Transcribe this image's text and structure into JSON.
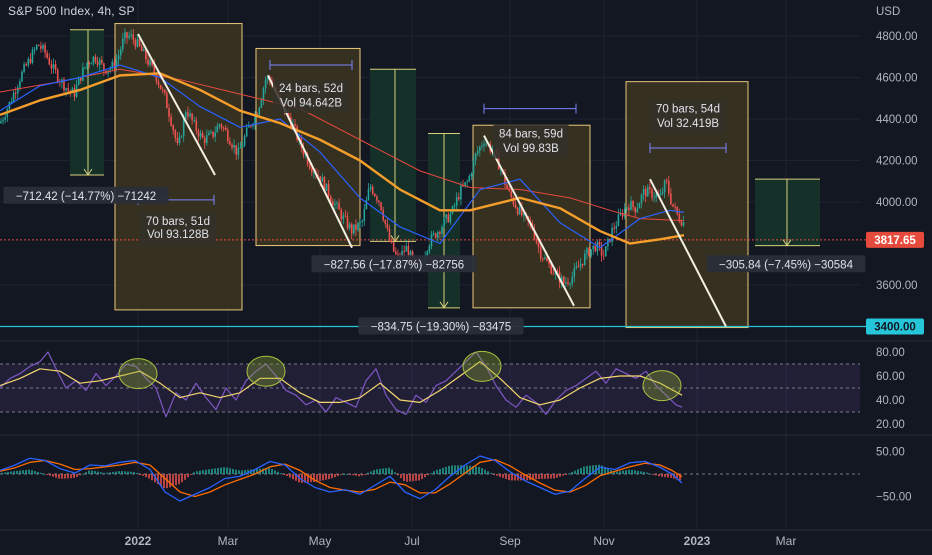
{
  "symbol": "S&P 500 Index, 4h, SP",
  "currency": "USD",
  "colors": {
    "bg": "#131722",
    "grid": "#1f2330",
    "up": "#26a69a",
    "down": "#ef5350",
    "ma_fast": "#2962ff",
    "ma_slow": "#f59e2b",
    "ma_mid": "#e64a3c",
    "drop_box": "#3d3520",
    "drop_border": "#e9c77a",
    "target_box": "#15302a",
    "target_line": "#d8d07a",
    "rsi": "#7e57c2",
    "rsi_signal": "#f5d76e",
    "macd": "#2962ff",
    "macd_signal": "#ff6d00",
    "price_line": "#e64a3c",
    "support_line": "#26c6da"
  },
  "chart_data": {
    "type": "line",
    "title": "S&P 500 Index, 4h, SP",
    "x_ticks": [
      "2022",
      "Mar",
      "May",
      "Jul",
      "Sep",
      "Nov",
      "2023",
      "Mar"
    ],
    "y_ticks": [
      "4800.00",
      "4600.00",
      "4400.00",
      "4200.00",
      "4000.00",
      "3600.00"
    ],
    "ylim": [
      3400,
      4850
    ],
    "price_path": [
      [
        0,
        4380
      ],
      [
        10,
        4480
      ],
      [
        20,
        4600
      ],
      [
        30,
        4690
      ],
      [
        38,
        4760
      ],
      [
        45,
        4720
      ],
      [
        52,
        4650
      ],
      [
        60,
        4590
      ],
      [
        68,
        4540
      ],
      [
        74,
        4520
      ],
      [
        80,
        4600
      ],
      [
        88,
        4680
      ],
      [
        96,
        4700
      ],
      [
        104,
        4640
      ],
      [
        112,
        4650
      ],
      [
        118,
        4700
      ],
      [
        124,
        4790
      ],
      [
        130,
        4800
      ],
      [
        136,
        4770
      ],
      [
        145,
        4700
      ],
      [
        155,
        4620
      ],
      [
        165,
        4500
      ],
      [
        172,
        4380
      ],
      [
        178,
        4250
      ],
      [
        186,
        4450
      ],
      [
        194,
        4370
      ],
      [
        203,
        4300
      ],
      [
        212,
        4320
      ],
      [
        220,
        4380
      ],
      [
        228,
        4320
      ],
      [
        238,
        4230
      ],
      [
        248,
        4350
      ],
      [
        258,
        4450
      ],
      [
        266,
        4600
      ],
      [
        272,
        4580
      ],
      [
        280,
        4480
      ],
      [
        290,
        4400
      ],
      [
        300,
        4280
      ],
      [
        310,
        4180
      ],
      [
        320,
        4120
      ],
      [
        330,
        4030
      ],
      [
        342,
        3930
      ],
      [
        352,
        3860
      ],
      [
        362,
        3900
      ],
      [
        370,
        4080
      ],
      [
        380,
        4000
      ],
      [
        390,
        3800
      ],
      [
        398,
        3720
      ],
      [
        406,
        3780
      ],
      [
        414,
        3700
      ],
      [
        420,
        3680
      ],
      [
        428,
        3800
      ],
      [
        436,
        3850
      ],
      [
        444,
        3900
      ],
      [
        452,
        3950
      ],
      [
        460,
        4050
      ],
      [
        468,
        4100
      ],
      [
        476,
        4230
      ],
      [
        484,
        4300
      ],
      [
        492,
        4250
      ],
      [
        500,
        4170
      ],
      [
        508,
        4050
      ],
      [
        516,
        3980
      ],
      [
        524,
        3920
      ],
      [
        532,
        3880
      ],
      [
        540,
        3760
      ],
      [
        548,
        3700
      ],
      [
        556,
        3650
      ],
      [
        564,
        3610
      ],
      [
        572,
        3640
      ],
      [
        580,
        3700
      ],
      [
        588,
        3760
      ],
      [
        596,
        3790
      ],
      [
        604,
        3740
      ],
      [
        612,
        3860
      ],
      [
        620,
        3930
      ],
      [
        628,
        3990
      ],
      [
        636,
        3970
      ],
      [
        644,
        4050
      ],
      [
        652,
        4040
      ],
      [
        660,
        4020
      ],
      [
        666,
        4100
      ],
      [
        672,
        3990
      ],
      [
        678,
        3930
      ],
      [
        684,
        3900
      ]
    ],
    "ma_fast_path": [
      [
        0,
        4440
      ],
      [
        40,
        4560
      ],
      [
        80,
        4600
      ],
      [
        120,
        4660
      ],
      [
        160,
        4600
      ],
      [
        200,
        4460
      ],
      [
        240,
        4360
      ],
      [
        280,
        4400
      ],
      [
        320,
        4240
      ],
      [
        360,
        4020
      ],
      [
        400,
        3880
      ],
      [
        440,
        3800
      ],
      [
        480,
        4060
      ],
      [
        520,
        4110
      ],
      [
        560,
        3900
      ],
      [
        600,
        3780
      ],
      [
        640,
        3920
      ],
      [
        670,
        3960
      ],
      [
        684,
        3950
      ]
    ],
    "ma_slow_path": [
      [
        0,
        4420
      ],
      [
        40,
        4490
      ],
      [
        80,
        4540
      ],
      [
        120,
        4610
      ],
      [
        160,
        4620
      ],
      [
        200,
        4540
      ],
      [
        240,
        4440
      ],
      [
        280,
        4380
      ],
      [
        320,
        4300
      ],
      [
        360,
        4200
      ],
      [
        400,
        4060
      ],
      [
        440,
        3960
      ],
      [
        470,
        3960
      ],
      [
        520,
        4020
      ],
      [
        560,
        3970
      ],
      [
        600,
        3860
      ],
      [
        630,
        3800
      ],
      [
        660,
        3820
      ],
      [
        684,
        3840
      ]
    ],
    "ma_mid_path": [
      [
        0,
        4530
      ],
      [
        60,
        4580
      ],
      [
        120,
        4640
      ],
      [
        180,
        4590
      ],
      [
        240,
        4520
      ],
      [
        300,
        4450
      ],
      [
        360,
        4300
      ],
      [
        420,
        4150
      ],
      [
        470,
        4070
      ],
      [
        520,
        4060
      ],
      [
        570,
        4020
      ],
      [
        610,
        3960
      ],
      [
        640,
        3920
      ],
      [
        684,
        3910
      ]
    ],
    "drops": [
      {
        "x1": 115,
        "x2": 242,
        "top": 4860,
        "bottom": 3480,
        "line": [
          [
            138,
            4810
          ],
          [
            215,
            4130
          ]
        ],
        "bars": "70 bars, 51d",
        "vol": "Vol 93.128B"
      },
      {
        "x1": 256,
        "x2": 360,
        "top": 4740,
        "bottom": 3790,
        "line": [
          [
            268,
            4610
          ],
          [
            352,
            3780
          ]
        ],
        "bars": "24 bars, 52d",
        "vol": "Vol 94.642B"
      },
      {
        "x1": 473,
        "x2": 590,
        "top": 4370,
        "bottom": 3490,
        "line": [
          [
            484,
            4320
          ],
          [
            574,
            3500
          ]
        ],
        "bars": "84 bars, 59d",
        "vol": "Vol 99.83B"
      },
      {
        "x1": 626,
        "x2": 748,
        "top": 4580,
        "bottom": 3395,
        "line": [
          [
            650,
            4110
          ],
          [
            726,
            3400
          ]
        ],
        "bars": "70 bars, 54d",
        "vol": "Vol 32.419B"
      }
    ],
    "targets": [
      {
        "x1": 70,
        "x2": 104,
        "top": 4830,
        "bottom": 4130,
        "arrow_x": 88
      },
      {
        "x1": 370,
        "x2": 416,
        "top": 4640,
        "bottom": 3810,
        "arrow_x": 395
      },
      {
        "x1": 428,
        "x2": 460,
        "top": 4330,
        "bottom": 3490,
        "arrow_x": 444
      },
      {
        "x1": 755,
        "x2": 820,
        "top": 4110,
        "bottom": 3790,
        "arrow_x": 787
      }
    ],
    "measure_labels": [
      {
        "text": "−712.42 (−14.77%) −71242",
        "cx": 86,
        "y": 4030
      },
      {
        "text": "−827.56 (−17.87%) −82756",
        "cx": 394,
        "y": 3700
      },
      {
        "text": "−834.75 (−19.30%) −83475",
        "cx": 441,
        "y": 3400
      },
      {
        "text": "−305.84 (−7.45%) −30584",
        "cx": 786,
        "y": 3700
      }
    ],
    "last_price": "3817.65",
    "support": "3400.00",
    "rsi": {
      "y_ticks": [
        "80.00",
        "60.00",
        "40.00",
        "20.00"
      ],
      "band": [
        30,
        70
      ],
      "series": [
        [
          0,
          50
        ],
        [
          10,
          58
        ],
        [
          20,
          62
        ],
        [
          30,
          68
        ],
        [
          40,
          72
        ],
        [
          48,
          80
        ],
        [
          56,
          66
        ],
        [
          66,
          50
        ],
        [
          76,
          56
        ],
        [
          86,
          48
        ],
        [
          96,
          62
        ],
        [
          106,
          52
        ],
        [
          116,
          60
        ],
        [
          126,
          70
        ],
        [
          136,
          68
        ],
        [
          146,
          58
        ],
        [
          156,
          50
        ],
        [
          166,
          26
        ],
        [
          176,
          46
        ],
        [
          186,
          40
        ],
        [
          196,
          54
        ],
        [
          206,
          42
        ],
        [
          216,
          32
        ],
        [
          226,
          50
        ],
        [
          236,
          40
        ],
        [
          246,
          56
        ],
        [
          256,
          64
        ],
        [
          266,
          70
        ],
        [
          276,
          60
        ],
        [
          286,
          48
        ],
        [
          296,
          44
        ],
        [
          306,
          36
        ],
        [
          316,
          40
        ],
        [
          326,
          30
        ],
        [
          336,
          42
        ],
        [
          346,
          38
        ],
        [
          356,
          34
        ],
        [
          366,
          56
        ],
        [
          376,
          66
        ],
        [
          386,
          44
        ],
        [
          396,
          32
        ],
        [
          406,
          28
        ],
        [
          416,
          44
        ],
        [
          426,
          38
        ],
        [
          436,
          52
        ],
        [
          446,
          56
        ],
        [
          456,
          64
        ],
        [
          466,
          72
        ],
        [
          476,
          80
        ],
        [
          486,
          68
        ],
        [
          496,
          52
        ],
        [
          506,
          40
        ],
        [
          516,
          34
        ],
        [
          526,
          44
        ],
        [
          536,
          38
        ],
        [
          546,
          28
        ],
        [
          556,
          40
        ],
        [
          566,
          48
        ],
        [
          576,
          52
        ],
        [
          586,
          58
        ],
        [
          596,
          64
        ],
        [
          606,
          54
        ],
        [
          616,
          66
        ],
        [
          626,
          62
        ],
        [
          636,
          58
        ],
        [
          646,
          64
        ],
        [
          656,
          52
        ],
        [
          666,
          44
        ],
        [
          676,
          36
        ],
        [
          682,
          34
        ]
      ],
      "signal": [
        [
          0,
          52
        ],
        [
          20,
          58
        ],
        [
          40,
          66
        ],
        [
          60,
          64
        ],
        [
          80,
          54
        ],
        [
          100,
          56
        ],
        [
          120,
          60
        ],
        [
          140,
          64
        ],
        [
          160,
          54
        ],
        [
          180,
          42
        ],
        [
          200,
          46
        ],
        [
          220,
          42
        ],
        [
          240,
          46
        ],
        [
          260,
          58
        ],
        [
          280,
          58
        ],
        [
          300,
          46
        ],
        [
          320,
          38
        ],
        [
          340,
          38
        ],
        [
          360,
          42
        ],
        [
          380,
          54
        ],
        [
          400,
          40
        ],
        [
          420,
          38
        ],
        [
          440,
          48
        ],
        [
          460,
          60
        ],
        [
          480,
          72
        ],
        [
          500,
          58
        ],
        [
          520,
          42
        ],
        [
          540,
          36
        ],
        [
          560,
          40
        ],
        [
          580,
          50
        ],
        [
          600,
          58
        ],
        [
          620,
          60
        ],
        [
          640,
          60
        ],
        [
          660,
          54
        ],
        [
          682,
          44
        ]
      ],
      "circles": [
        [
          138,
          62
        ],
        [
          266,
          64
        ],
        [
          482,
          68
        ],
        [
          662,
          52
        ]
      ]
    },
    "macd": {
      "y_ticks": [
        "50.00",
        "−50.00"
      ],
      "macd_series": [
        [
          0,
          8
        ],
        [
          15,
          20
        ],
        [
          30,
          35
        ],
        [
          45,
          30
        ],
        [
          60,
          12
        ],
        [
          75,
          2
        ],
        [
          90,
          20
        ],
        [
          105,
          18
        ],
        [
          120,
          26
        ],
        [
          135,
          30
        ],
        [
          150,
          10
        ],
        [
          165,
          -40
        ],
        [
          180,
          -60
        ],
        [
          195,
          -45
        ],
        [
          210,
          -30
        ],
        [
          225,
          -10
        ],
        [
          240,
          -5
        ],
        [
          255,
          10
        ],
        [
          270,
          28
        ],
        [
          285,
          20
        ],
        [
          300,
          -10
        ],
        [
          315,
          -30
        ],
        [
          330,
          -40
        ],
        [
          345,
          -35
        ],
        [
          360,
          -45
        ],
        [
          375,
          -25
        ],
        [
          390,
          -5
        ],
        [
          405,
          -40
        ],
        [
          420,
          -55
        ],
        [
          435,
          -35
        ],
        [
          450,
          -5
        ],
        [
          465,
          20
        ],
        [
          480,
          40
        ],
        [
          495,
          30
        ],
        [
          510,
          5
        ],
        [
          525,
          -15
        ],
        [
          540,
          -30
        ],
        [
          555,
          -45
        ],
        [
          570,
          -38
        ],
        [
          585,
          -10
        ],
        [
          600,
          15
        ],
        [
          615,
          10
        ],
        [
          630,
          25
        ],
        [
          645,
          28
        ],
        [
          660,
          15
        ],
        [
          672,
          0
        ],
        [
          682,
          -20
        ]
      ],
      "signal_series": [
        [
          0,
          6
        ],
        [
          15,
          14
        ],
        [
          30,
          26
        ],
        [
          45,
          30
        ],
        [
          60,
          22
        ],
        [
          75,
          10
        ],
        [
          90,
          12
        ],
        [
          105,
          16
        ],
        [
          120,
          20
        ],
        [
          135,
          26
        ],
        [
          150,
          20
        ],
        [
          165,
          -10
        ],
        [
          180,
          -40
        ],
        [
          195,
          -50
        ],
        [
          210,
          -40
        ],
        [
          225,
          -24
        ],
        [
          240,
          -12
        ],
        [
          255,
          0
        ],
        [
          270,
          16
        ],
        [
          285,
          22
        ],
        [
          300,
          8
        ],
        [
          315,
          -14
        ],
        [
          330,
          -30
        ],
        [
          345,
          -36
        ],
        [
          360,
          -40
        ],
        [
          375,
          -34
        ],
        [
          390,
          -18
        ],
        [
          405,
          -24
        ],
        [
          420,
          -42
        ],
        [
          435,
          -42
        ],
        [
          450,
          -22
        ],
        [
          465,
          2
        ],
        [
          480,
          26
        ],
        [
          495,
          32
        ],
        [
          510,
          18
        ],
        [
          525,
          -2
        ],
        [
          540,
          -20
        ],
        [
          555,
          -36
        ],
        [
          570,
          -40
        ],
        [
          585,
          -26
        ],
        [
          600,
          -4
        ],
        [
          615,
          6
        ],
        [
          630,
          16
        ],
        [
          645,
          24
        ],
        [
          660,
          20
        ],
        [
          672,
          8
        ],
        [
          682,
          -6
        ]
      ]
    }
  }
}
